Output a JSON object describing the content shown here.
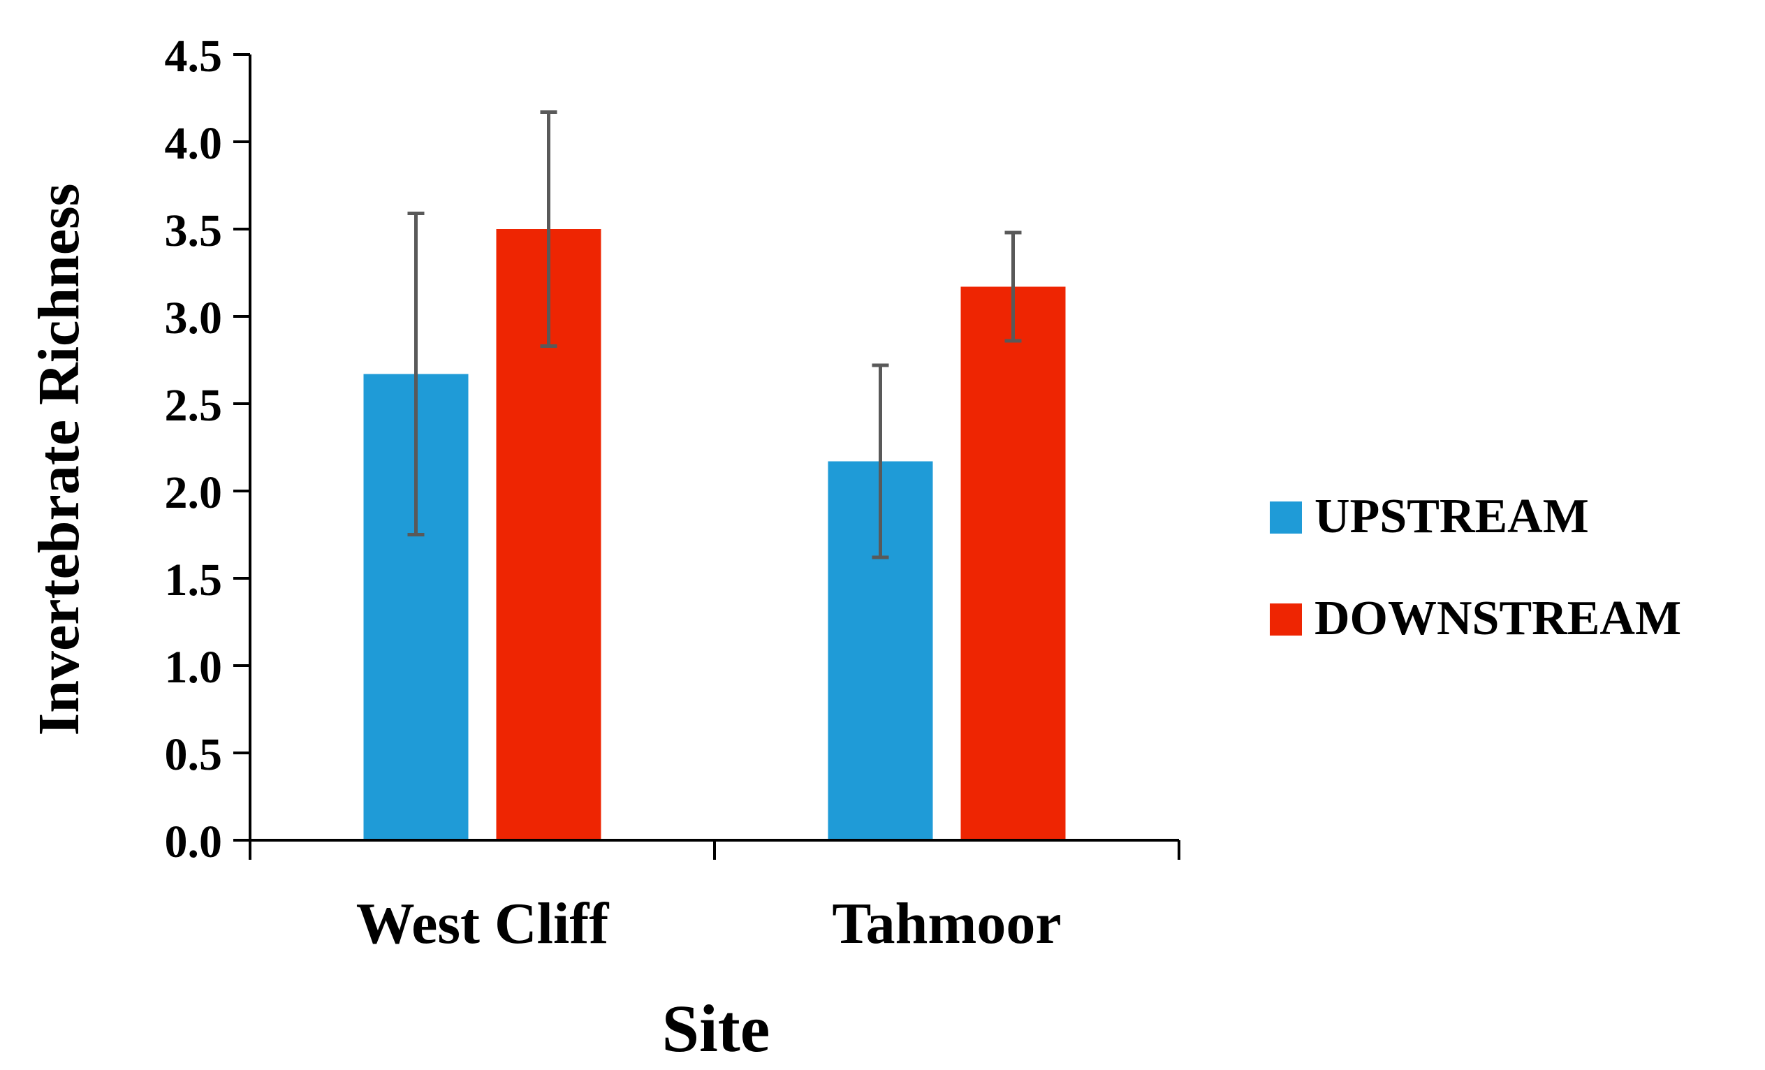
{
  "chart_data": {
    "type": "bar",
    "title": "",
    "xlabel": "Site",
    "ylabel": "Invertebrate Richness",
    "categories": [
      "West Cliff",
      "Tahmoor"
    ],
    "series": [
      {
        "name": "UPSTREAM",
        "color": "#1f9bd7",
        "values": [
          2.67,
          2.17
        ],
        "errors": [
          0.92,
          0.55
        ]
      },
      {
        "name": "DOWNSTREAM",
        "color": "#ee2502",
        "values": [
          3.5,
          3.17
        ],
        "errors": [
          0.67,
          0.31
        ]
      }
    ],
    "ylim": [
      0,
      4.5
    ],
    "yticks": [
      "0.0",
      "0.5",
      "1.0",
      "1.5",
      "2.0",
      "2.5",
      "3.0",
      "3.5",
      "4.0",
      "4.5"
    ],
    "grid": false,
    "legend_position": "right",
    "error_bar_color": "#595959"
  }
}
